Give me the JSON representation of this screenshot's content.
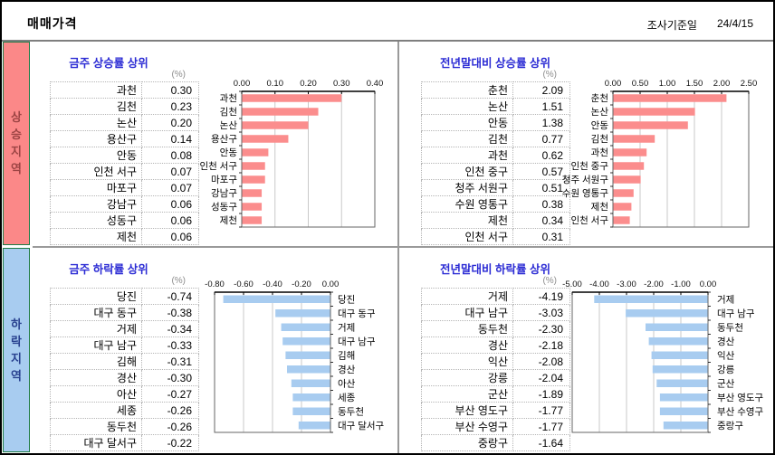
{
  "header": {
    "title": "매매가격",
    "survey_label": "조사기준일",
    "survey_date": "24/4/15"
  },
  "sidebar": {
    "rise": {
      "label": "상승지역",
      "bg": "#fb8888",
      "text": "#9c4444"
    },
    "fall": {
      "label": "하락지역",
      "bg": "#a8ccf0",
      "text": "#28418f"
    }
  },
  "colors": {
    "rise_bar": "#fb8d8d",
    "fall_bar": "#a8ccf0",
    "title_blue": "#2b2bd4",
    "divider_gray": "#9a9a9a",
    "sidebar_border_green": "#1e7b46"
  },
  "chart_data": [
    {
      "type": "bar",
      "title": "금주 상승률 상위",
      "unit": "(%)",
      "orientation": "horizontal",
      "categories": [
        "과천",
        "김천",
        "논산",
        "용산구",
        "안동",
        "인천 서구",
        "마포구",
        "강남구",
        "성동구",
        "제천"
      ],
      "values": [
        0.3,
        0.23,
        0.2,
        0.14,
        0.08,
        0.07,
        0.07,
        0.06,
        0.06,
        0.06
      ],
      "xlim": [
        0.0,
        0.4
      ],
      "tick_step": 0.1,
      "bar_color": "#fb8d8d",
      "label_side": "left",
      "grid": true,
      "axis_position": "top"
    },
    {
      "type": "bar",
      "title": "전년말대비 상승률 상위",
      "unit": "(%)",
      "orientation": "horizontal",
      "categories": [
        "춘천",
        "논산",
        "안동",
        "김천",
        "과천",
        "인천 중구",
        "청주 서원구",
        "수원 영통구",
        "제천",
        "인천 서구"
      ],
      "values": [
        2.09,
        1.51,
        1.38,
        0.77,
        0.62,
        0.57,
        0.51,
        0.38,
        0.34,
        0.31
      ],
      "xlim": [
        0.0,
        2.5
      ],
      "tick_step": 0.5,
      "bar_color": "#fb8d8d",
      "label_side": "left",
      "grid": true,
      "axis_position": "top"
    },
    {
      "type": "bar",
      "title": "금주 하락률 상위",
      "unit": "(%)",
      "orientation": "horizontal",
      "categories": [
        "당진",
        "대구 동구",
        "거제",
        "대구 남구",
        "김해",
        "경산",
        "아산",
        "세종",
        "동두천",
        "대구 달서구"
      ],
      "values": [
        -0.74,
        -0.38,
        -0.34,
        -0.33,
        -0.31,
        -0.3,
        -0.27,
        -0.26,
        -0.26,
        -0.22
      ],
      "xlim": [
        -0.8,
        0.0
      ],
      "tick_step": 0.2,
      "bar_color": "#a8ccf0",
      "label_side": "right",
      "grid": true,
      "axis_position": "top"
    },
    {
      "type": "bar",
      "title": "전년말대비 하락률 상위",
      "unit": "(%)",
      "orientation": "horizontal",
      "categories": [
        "거제",
        "대구 남구",
        "동두천",
        "경산",
        "익산",
        "강릉",
        "군산",
        "부산 영도구",
        "부산 수영구",
        "중랑구"
      ],
      "values": [
        -4.19,
        -3.03,
        -2.3,
        -2.18,
        -2.08,
        -2.04,
        -1.89,
        -1.77,
        -1.77,
        -1.64
      ],
      "xlim": [
        -5.0,
        0.0
      ],
      "tick_step": 1.0,
      "bar_color": "#a8ccf0",
      "label_side": "right",
      "grid": true,
      "axis_position": "top"
    }
  ]
}
